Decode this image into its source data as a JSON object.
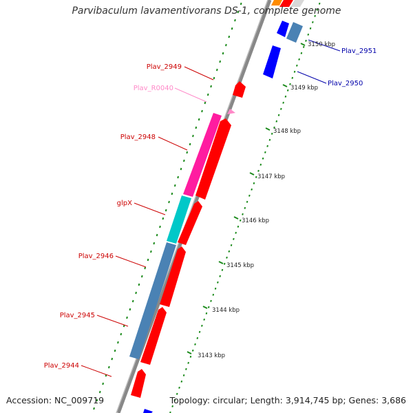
{
  "title": "Parvibaculum lavamentivorans DS-1, complete genome",
  "accession_text": "Accession: NC_009719",
  "summary_text": "Topology: circular; Length: 3,914,745 bp; Genes: 3,686",
  "colors": {
    "cds": "#ff0000",
    "cds_label": "#cc0000",
    "trna": "#ff1aa8",
    "trna_label": "#ff88c8",
    "blue_gene": "#0000ff",
    "blue_label": "#0000aa",
    "steel": "#4a82b4",
    "cyan": "#00c8c8",
    "magenta": "#ff1ca0",
    "backbone": "#888888",
    "gc_dots": "#1b8a1b"
  },
  "ticks": [
    {
      "label": "3150 kbp",
      "kbp": 3150
    },
    {
      "label": "3149 kbp",
      "kbp": 3149
    },
    {
      "label": "3148 kbp",
      "kbp": 3148
    },
    {
      "label": "3147 kbp",
      "kbp": 3147
    },
    {
      "label": "3146 kbp",
      "kbp": 3146
    },
    {
      "label": "3145 kbp",
      "kbp": 3145
    },
    {
      "label": "3144 kbp",
      "kbp": 3144
    },
    {
      "label": "3143 kbp",
      "kbp": 3143
    }
  ],
  "gene_labels": [
    {
      "text": "Plav_2951",
      "kind": "blue"
    },
    {
      "text": "Plav_2950",
      "kind": "blue"
    },
    {
      "text": "Plav_2949",
      "kind": "red"
    },
    {
      "text": "Plav_R0040",
      "kind": "pink"
    },
    {
      "text": "Plav_2948",
      "kind": "red"
    },
    {
      "text": "glpX",
      "kind": "red"
    },
    {
      "text": "Plav_2946",
      "kind": "red"
    },
    {
      "text": "Plav_2945",
      "kind": "red"
    },
    {
      "text": "Plav_2944",
      "kind": "red"
    }
  ]
}
